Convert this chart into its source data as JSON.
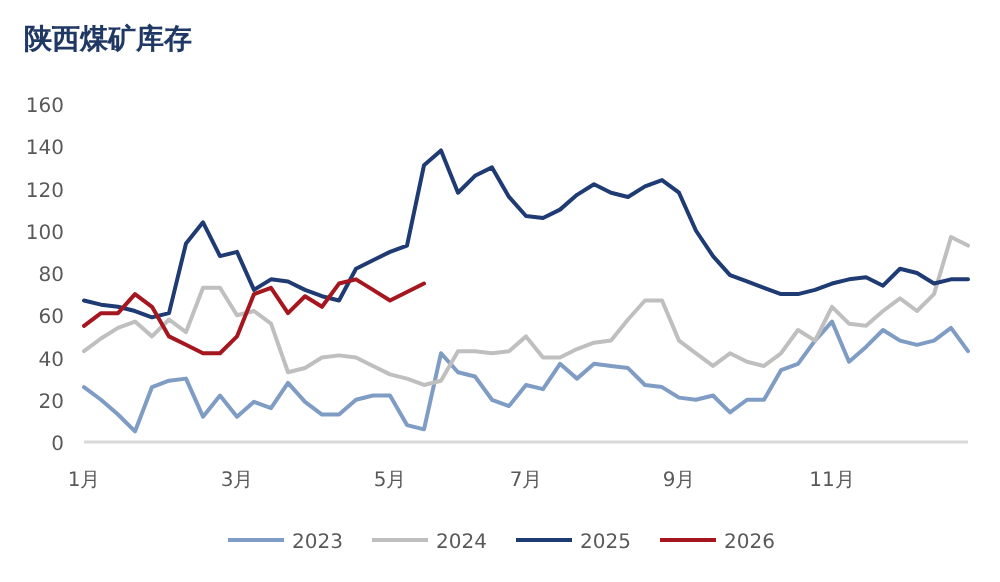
{
  "chart_data": {
    "type": "line",
    "title": "陕西煤矿库存",
    "categories": [
      "1月",
      null,
      null,
      null,
      null,
      null,
      null,
      null,
      null,
      "3月",
      null,
      null,
      null,
      null,
      null,
      null,
      null,
      null,
      "5月",
      null,
      null,
      null,
      null,
      null,
      null,
      null,
      "7月",
      null,
      null,
      null,
      null,
      null,
      null,
      null,
      null,
      "9月",
      null,
      null,
      null,
      null,
      null,
      null,
      null,
      null,
      "11月",
      null,
      null,
      null,
      null,
      null,
      null,
      null,
      null
    ],
    "series": [
      {
        "name": "2023",
        "color": "#7f9cc4",
        "values": [
          26,
          20,
          13,
          5,
          26,
          29,
          30,
          12,
          22,
          12,
          19,
          16,
          28,
          19,
          13,
          13,
          20,
          22,
          22,
          8,
          6,
          42,
          33,
          31,
          20,
          17,
          27,
          25,
          37,
          30,
          37,
          36,
          35,
          27,
          26,
          21,
          20,
          22,
          14,
          20,
          20,
          34,
          37,
          48,
          57,
          38,
          45,
          53,
          48,
          46,
          48,
          54,
          43
        ]
      },
      {
        "name": "2024",
        "color": "#bfbfbf",
        "values": [
          43,
          49,
          54,
          57,
          50,
          58,
          52,
          73,
          73,
          60,
          62,
          56,
          33,
          35,
          40,
          41,
          40,
          36,
          32,
          30,
          27,
          29,
          43,
          43,
          42,
          43,
          50,
          40,
          40,
          44,
          47,
          48,
          58,
          67,
          67,
          48,
          42,
          36,
          42,
          38,
          36,
          42,
          53,
          48,
          64,
          56,
          55,
          62,
          68,
          62,
          70,
          97,
          93
        ]
      },
      {
        "name": "2025",
        "color": "#1f3b73",
        "values": [
          67,
          65,
          64,
          62,
          59,
          61,
          94,
          104,
          88,
          90,
          72,
          77,
          76,
          72,
          69,
          67,
          82,
          86,
          90,
          93,
          131,
          138,
          118,
          126,
          130,
          116,
          107,
          106,
          110,
          117,
          122,
          118,
          116,
          121,
          124,
          118,
          100,
          88,
          79,
          76,
          73,
          70,
          70,
          72,
          75,
          77,
          78,
          74,
          82,
          80,
          75,
          77,
          77
        ]
      },
      {
        "name": "2026",
        "color": "#a5161f",
        "values": [
          55,
          61,
          61,
          70,
          64,
          50,
          46,
          42,
          42,
          50,
          70,
          73,
          61,
          69,
          64,
          75,
          77,
          72,
          67,
          71,
          75,
          null,
          null,
          null,
          null,
          null,
          null,
          null,
          null,
          null,
          null,
          null,
          null,
          null,
          null,
          null,
          null,
          null,
          null,
          null,
          null,
          null,
          null,
          null,
          null,
          null,
          null,
          null,
          null,
          null,
          null,
          null,
          null
        ]
      }
    ],
    "ylim": [
      0,
      160
    ],
    "yticks": [
      0,
      20,
      40,
      60,
      80,
      100,
      120,
      140,
      160
    ],
    "grid": false,
    "legend": "bottom",
    "marker": "none",
    "line_style": "solid"
  }
}
